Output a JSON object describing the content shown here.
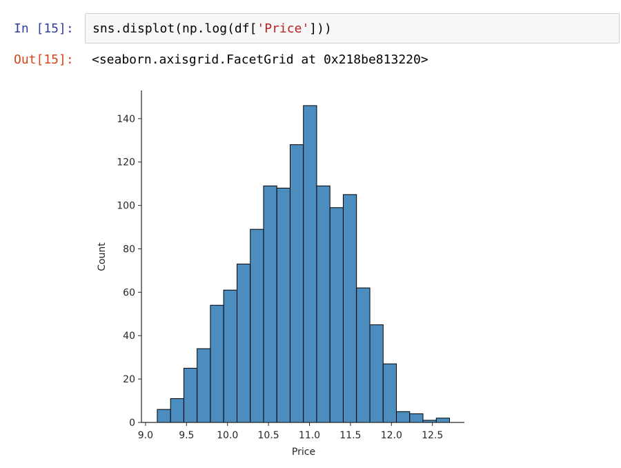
{
  "input": {
    "prompt": "In [15]:",
    "code": [
      "sns.displot(np.log(df[",
      "'Price'",
      "]))"
    ]
  },
  "output": {
    "prompt": "Out[15]:",
    "text": "<seaborn.axisgrid.FacetGrid at 0x218be813220>"
  },
  "chart_data": {
    "type": "histogram",
    "x_label": "Price",
    "y_label": "Count",
    "color": "#4c8dbf",
    "bins": [
      9.143,
      9.305,
      9.467,
      9.629,
      9.791,
      9.953,
      10.116,
      10.278,
      10.44,
      10.602,
      10.764,
      10.926,
      11.088,
      11.25,
      11.412,
      11.574,
      11.737,
      11.899,
      12.061,
      12.223,
      12.385,
      12.547,
      12.709
    ],
    "values": [
      6,
      11,
      25,
      34,
      54,
      61,
      73,
      89,
      109,
      108,
      128,
      146,
      109,
      99,
      105,
      62,
      45,
      27,
      5,
      4,
      1,
      2
    ],
    "xlim": [
      8.95,
      12.89
    ],
    "ylim": [
      0,
      153
    ],
    "xticks": [
      {
        "value": 9,
        "label": "9.0"
      },
      9.5,
      {
        "value": 10,
        "label": "10.0"
      },
      10.5,
      {
        "value": 11,
        "label": "11.0"
      },
      11.5,
      {
        "value": 12,
        "label": "12.0"
      },
      12.5
    ],
    "yticks": [
      0,
      20,
      40,
      60,
      80,
      100,
      120,
      140
    ]
  }
}
